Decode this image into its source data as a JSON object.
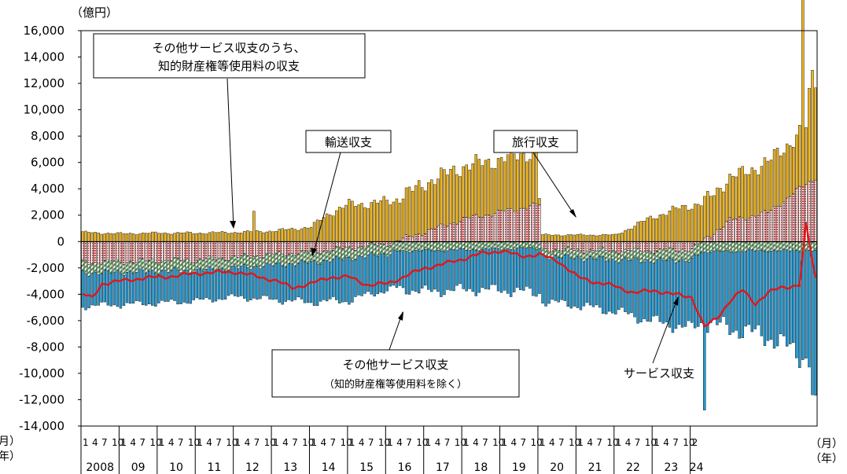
{
  "chart_data": {
    "type": "bar",
    "unit_label": "（億円）",
    "x_unit_month": "（月）",
    "x_unit_year": "（年）",
    "left_unit_month": "月）",
    "left_unit_year": "年）",
    "ylim": [
      -14000,
      16000
    ],
    "yticks": [
      "16,000",
      "14,000",
      "12,000",
      "10,000",
      "8,000",
      "6,000",
      "4,000",
      "2,000",
      "0",
      "-2,000",
      "-4,000",
      "-6,000",
      "-8,000",
      "-10,000",
      "-12,000",
      "-14,000"
    ],
    "year_labels": [
      "2008",
      "09",
      "10",
      "11",
      "12",
      "13",
      "14",
      "15",
      "16",
      "17",
      "18",
      "19",
      "20",
      "21",
      "22",
      "23",
      "24"
    ],
    "month_labels": [
      "1",
      "4",
      "7",
      "10"
    ],
    "last_month_label": "2",
    "series": [
      {
        "key": "travel",
        "name": "旅行収支",
        "color": "#F2B519",
        "anchors": [
          [
            0,
            700
          ],
          [
            12,
            600
          ],
          [
            24,
            650
          ],
          [
            36,
            650
          ],
          [
            48,
            700
          ],
          [
            60,
            800
          ],
          [
            72,
            1100
          ],
          [
            78,
            2200
          ],
          [
            84,
            2800
          ],
          [
            96,
            3000
          ],
          [
            108,
            3700
          ],
          [
            120,
            4000
          ],
          [
            132,
            4000
          ],
          [
            143,
            4100
          ],
          [
            144,
            500
          ],
          [
            156,
            500
          ],
          [
            168,
            500
          ],
          [
            180,
            1900
          ],
          [
            192,
            2800
          ],
          [
            204,
            3200
          ],
          [
            216,
            3800
          ],
          [
            228,
            4300
          ],
          [
            229,
            6300
          ],
          [
            230,
            7700
          ],
          [
            231,
            7600
          ]
        ]
      },
      {
        "key": "ip",
        "name": "知的財産権等使用料の収支",
        "color": "#E8484B",
        "anchors": [
          [
            0,
            -1600
          ],
          [
            36,
            -1400
          ],
          [
            72,
            -800
          ],
          [
            96,
            -200
          ],
          [
            120,
            1700
          ],
          [
            144,
            2800
          ],
          [
            145,
            -600
          ],
          [
            168,
            -700
          ],
          [
            180,
            -700
          ],
          [
            192,
            -600
          ],
          [
            204,
            1600
          ],
          [
            216,
            2200
          ],
          [
            231,
            4900
          ]
        ]
      },
      {
        "key": "transport",
        "name": "輸送収支",
        "color": "#3C9A3C",
        "anchors": [
          [
            0,
            -800
          ],
          [
            36,
            -800
          ],
          [
            72,
            -800
          ],
          [
            108,
            -700
          ],
          [
            144,
            -500
          ],
          [
            156,
            -600
          ],
          [
            168,
            -700
          ],
          [
            192,
            -800
          ],
          [
            216,
            -700
          ],
          [
            231,
            -700
          ]
        ]
      },
      {
        "key": "other",
        "name": "その他サービス収支",
        "color": "#1E9BD8",
        "anchors": [
          [
            0,
            -2500
          ],
          [
            24,
            -2400
          ],
          [
            48,
            -2200
          ],
          [
            72,
            -3000
          ],
          [
            84,
            -3200
          ],
          [
            96,
            -2700
          ],
          [
            108,
            -3100
          ],
          [
            120,
            -3000
          ],
          [
            132,
            -3100
          ],
          [
            144,
            -3400
          ],
          [
            156,
            -3600
          ],
          [
            168,
            -3900
          ],
          [
            180,
            -4600
          ],
          [
            192,
            -5200
          ],
          [
            204,
            -5800
          ],
          [
            216,
            -6500
          ],
          [
            231,
            -8500
          ]
        ]
      },
      {
        "key": "services",
        "name": "サービス収支",
        "color": "#E0161C",
        "anchors": [
          [
            0,
            -4000
          ],
          [
            3,
            -4300
          ],
          [
            6,
            -3200
          ],
          [
            12,
            -3000
          ],
          [
            18,
            -2800
          ],
          [
            24,
            -2700
          ],
          [
            30,
            -2600
          ],
          [
            36,
            -2400
          ],
          [
            48,
            -2300
          ],
          [
            54,
            -2600
          ],
          [
            60,
            -2900
          ],
          [
            66,
            -3500
          ],
          [
            72,
            -3200
          ],
          [
            78,
            -2700
          ],
          [
            84,
            -2700
          ],
          [
            90,
            -3300
          ],
          [
            96,
            -3200
          ],
          [
            102,
            -2600
          ],
          [
            108,
            -2000
          ],
          [
            114,
            -1700
          ],
          [
            120,
            -1300
          ],
          [
            126,
            -900
          ],
          [
            132,
            -700
          ],
          [
            138,
            -1100
          ],
          [
            144,
            -1000
          ],
          [
            150,
            -1500
          ],
          [
            156,
            -2700
          ],
          [
            162,
            -3100
          ],
          [
            168,
            -3400
          ],
          [
            174,
            -3900
          ],
          [
            180,
            -3700
          ],
          [
            186,
            -4000
          ],
          [
            192,
            -4200
          ],
          [
            196,
            -6500
          ],
          [
            200,
            -5800
          ],
          [
            204,
            -4500
          ],
          [
            208,
            -3700
          ],
          [
            212,
            -4700
          ],
          [
            216,
            -3900
          ],
          [
            220,
            -3500
          ],
          [
            226,
            -3300
          ],
          [
            228,
            1300
          ],
          [
            231,
            -2800
          ]
        ]
      }
    ],
    "spikes": [
      {
        "key": "travel",
        "i": 227,
        "v": 15800
      },
      {
        "key": "travel",
        "i": 54,
        "v": 2300
      },
      {
        "key": "travel",
        "i": 143,
        "v": 5600
      },
      {
        "key": "other",
        "i": 196,
        "v": -12000
      },
      {
        "key": "other",
        "i": 230,
        "v": -10900
      },
      {
        "key": "other",
        "i": 231,
        "v": -11000
      }
    ],
    "annotations": [
      {
        "id": "ip",
        "lines": [
          "その他サービス収支のうち、",
          "知的財産権等使用料の収支"
        ]
      },
      {
        "id": "transport",
        "lines": [
          "輸送収支"
        ]
      },
      {
        "id": "travel",
        "lines": [
          "旅行収支"
        ]
      },
      {
        "id": "other",
        "lines": [
          "その他サービス収支",
          "（知的財産権等使用料を除く）"
        ]
      },
      {
        "id": "services",
        "lines": [
          "サービス収支"
        ]
      }
    ]
  }
}
